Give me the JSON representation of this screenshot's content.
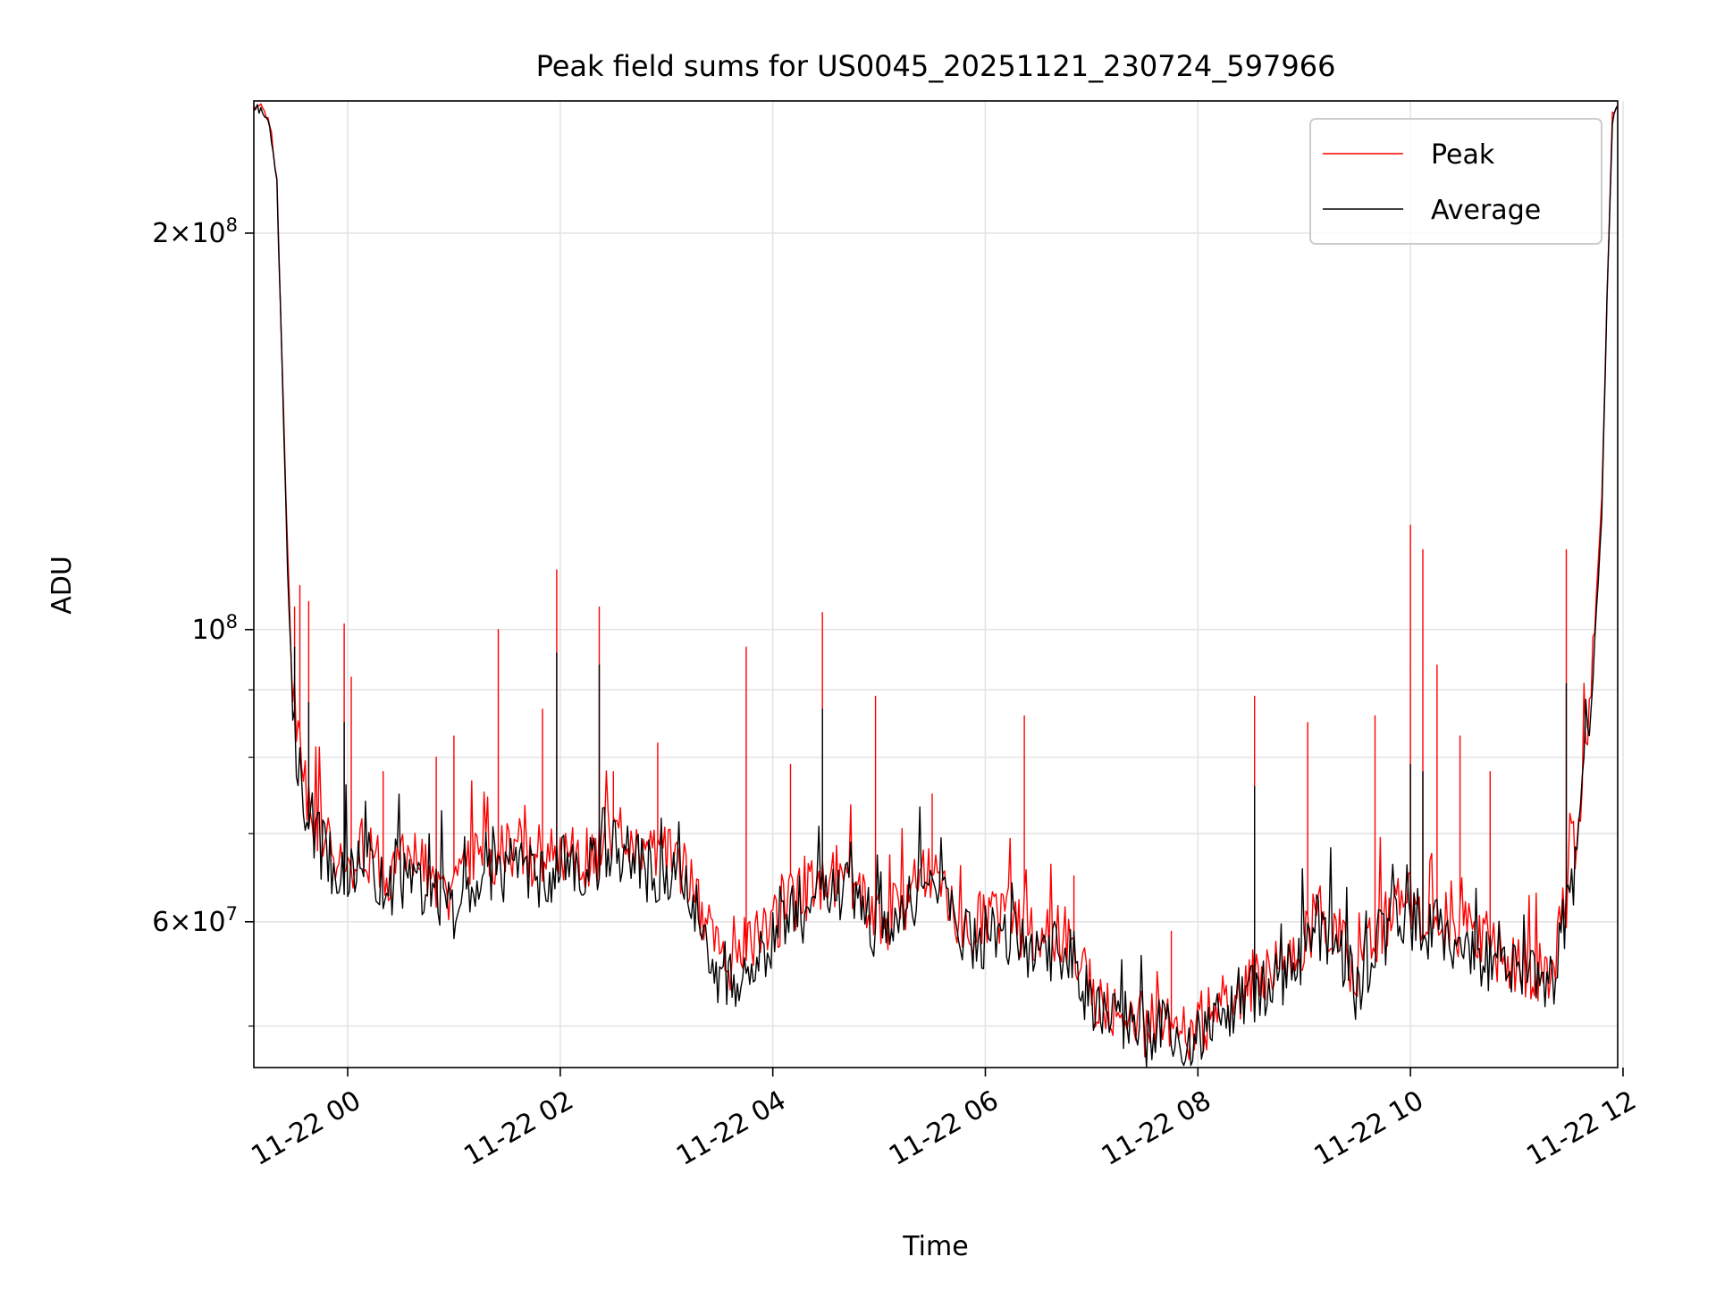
{
  "chart_data": {
    "type": "line",
    "title": "Peak field sums for US0045_20251121_230724_597966",
    "xlabel": "Time",
    "ylabel": "ADU",
    "y_scale": "log",
    "ylim": [
      46500000,
      252000000
    ],
    "xlim": [
      "2025-11-21 23:07",
      "2025-11-22 11:57"
    ],
    "grid": true,
    "legend_position": "top-right",
    "x_ticks": [
      {
        "value": "2025-11-22 00:00",
        "label": "11-22 00"
      },
      {
        "value": "2025-11-22 02:00",
        "label": "11-22 02"
      },
      {
        "value": "2025-11-22 04:00",
        "label": "11-22 04"
      },
      {
        "value": "2025-11-22 06:00",
        "label": "11-22 06"
      },
      {
        "value": "2025-11-22 08:00",
        "label": "11-22 08"
      },
      {
        "value": "2025-11-22 10:00",
        "label": "11-22 10"
      },
      {
        "value": "2025-11-22 12:00",
        "label": "11-22 12"
      }
    ],
    "y_major_ticks": [
      {
        "value": 60000000,
        "mantissa": "6",
        "exponent": "7"
      },
      {
        "value": 100000000,
        "mantissa": "",
        "exponent": "8"
      },
      {
        "value": 200000000,
        "mantissa": "2",
        "exponent": "8"
      }
    ],
    "y_minor_ticks": [
      50000000,
      70000000,
      80000000,
      90000000
    ],
    "series": [
      {
        "name": "Peak",
        "color": "#ff0000",
        "x": [
          "2025-11-21 23:07",
          "2025-11-21 23:12",
          "2025-11-21 23:16",
          "2025-11-21 23:20",
          "2025-11-21 23:23",
          "2025-11-21 23:26",
          "2025-11-21 23:28",
          "2025-11-21 23:30",
          "2025-11-21 23:33",
          "2025-11-21 23:36",
          "2025-11-21 23:40",
          "2025-11-21 23:45",
          "2025-11-21 23:50",
          "2025-11-21 23:55",
          "2025-11-22 00:00",
          "2025-11-22 00:10",
          "2025-11-22 00:20",
          "2025-11-22 00:30",
          "2025-11-22 00:40",
          "2025-11-22 00:50",
          "2025-11-22 01:00",
          "2025-11-22 01:10",
          "2025-11-22 01:20",
          "2025-11-22 01:30",
          "2025-11-22 01:40",
          "2025-11-22 01:50",
          "2025-11-22 02:00",
          "2025-11-22 02:10",
          "2025-11-22 02:20",
          "2025-11-22 02:30",
          "2025-11-22 02:40",
          "2025-11-22 02:50",
          "2025-11-22 03:00",
          "2025-11-22 03:10",
          "2025-11-22 03:20",
          "2025-11-22 03:30",
          "2025-11-22 03:40",
          "2025-11-22 03:50",
          "2025-11-22 04:00",
          "2025-11-22 04:10",
          "2025-11-22 04:20",
          "2025-11-22 04:30",
          "2025-11-22 04:40",
          "2025-11-22 04:50",
          "2025-11-22 05:00",
          "2025-11-22 05:10",
          "2025-11-22 05:20",
          "2025-11-22 05:30",
          "2025-11-22 05:40",
          "2025-11-22 05:50",
          "2025-11-22 06:00",
          "2025-11-22 06:10",
          "2025-11-22 06:20",
          "2025-11-22 06:30",
          "2025-11-22 06:40",
          "2025-11-22 06:50",
          "2025-11-22 07:00",
          "2025-11-22 07:10",
          "2025-11-22 07:20",
          "2025-11-22 07:30",
          "2025-11-22 07:40",
          "2025-11-22 07:50",
          "2025-11-22 08:00",
          "2025-11-22 08:10",
          "2025-11-22 08:20",
          "2025-11-22 08:30",
          "2025-11-22 08:40",
          "2025-11-22 08:50",
          "2025-11-22 09:00",
          "2025-11-22 09:10",
          "2025-11-22 09:20",
          "2025-11-22 09:30",
          "2025-11-22 09:40",
          "2025-11-22 09:50",
          "2025-11-22 10:00",
          "2025-11-22 10:10",
          "2025-11-22 10:20",
          "2025-11-22 10:30",
          "2025-11-22 10:40",
          "2025-11-22 10:50",
          "2025-11-22 11:00",
          "2025-11-22 11:10",
          "2025-11-22 11:20",
          "2025-11-22 11:25",
          "2025-11-22 11:30",
          "2025-11-22 11:35",
          "2025-11-22 11:40",
          "2025-11-22 11:44",
          "2025-11-22 11:48",
          "2025-11-22 11:51",
          "2025-11-22 11:54",
          "2025-11-22 11:57"
        ],
        "y": [
          250000000,
          248000000,
          243000000,
          220000000,
          160000000,
          115000000,
          97000000,
          86000000,
          80000000,
          76000000,
          73000000,
          70000000,
          68000000,
          67000000,
          66000000,
          68000000,
          65000000,
          67000000,
          66000000,
          65000000,
          63000000,
          66000000,
          67000000,
          68000000,
          68000000,
          67000000,
          68000000,
          67000000,
          68000000,
          70000000,
          69000000,
          67000000,
          67000000,
          65000000,
          61000000,
          56000000,
          55000000,
          58000000,
          60000000,
          62000000,
          63000000,
          64000000,
          66000000,
          63000000,
          60000000,
          61000000,
          64000000,
          66000000,
          62000000,
          60000000,
          60000000,
          61000000,
          59000000,
          58000000,
          59000000,
          58000000,
          53000000,
          51000000,
          52000000,
          50000000,
          51000000,
          49500000,
          50000000,
          51500000,
          53000000,
          54000000,
          55000000,
          56000000,
          58000000,
          61000000,
          59000000,
          54000000,
          59000000,
          61000000,
          62000000,
          61000000,
          60000000,
          59000000,
          58000000,
          57000000,
          56000000,
          55000000,
          55000000,
          60000000,
          64000000,
          70000000,
          85000000,
          100000000,
          125000000,
          180000000,
          245000000,
          250000000
        ],
        "spikes": [
          {
            "x": "2025-11-21 23:30",
            "y": 104000000
          },
          {
            "x": "2025-11-21 23:33",
            "y": 108000000
          },
          {
            "x": "2025-11-21 23:38",
            "y": 105000000
          },
          {
            "x": "2025-11-21 23:58",
            "y": 101000000
          },
          {
            "x": "2025-11-22 00:02",
            "y": 92000000
          },
          {
            "x": "2025-11-22 00:20",
            "y": 78000000
          },
          {
            "x": "2025-11-22 00:50",
            "y": 80000000
          },
          {
            "x": "2025-11-22 01:00",
            "y": 83000000
          },
          {
            "x": "2025-11-22 01:25",
            "y": 100000000
          },
          {
            "x": "2025-11-22 01:50",
            "y": 87000000
          },
          {
            "x": "2025-11-22 01:58",
            "y": 111000000
          },
          {
            "x": "2025-11-22 02:22",
            "y": 104000000
          },
          {
            "x": "2025-11-22 02:30",
            "y": 78000000
          },
          {
            "x": "2025-11-22 02:55",
            "y": 82000000
          },
          {
            "x": "2025-11-22 03:45",
            "y": 97000000
          },
          {
            "x": "2025-11-22 04:10",
            "y": 79000000
          },
          {
            "x": "2025-11-22 04:28",
            "y": 103000000
          },
          {
            "x": "2025-11-22 04:58",
            "y": 89000000
          },
          {
            "x": "2025-11-22 05:30",
            "y": 75000000
          },
          {
            "x": "2025-11-22 06:22",
            "y": 86000000
          },
          {
            "x": "2025-11-22 06:50",
            "y": 65000000
          },
          {
            "x": "2025-11-22 07:45",
            "y": 59000000
          },
          {
            "x": "2025-11-22 08:32",
            "y": 89000000
          },
          {
            "x": "2025-11-22 09:02",
            "y": 85000000
          },
          {
            "x": "2025-11-22 09:40",
            "y": 86000000
          },
          {
            "x": "2025-11-22 10:00",
            "y": 120000000
          },
          {
            "x": "2025-11-22 10:07",
            "y": 115000000
          },
          {
            "x": "2025-11-22 10:15",
            "y": 94000000
          },
          {
            "x": "2025-11-22 10:28",
            "y": 83000000
          },
          {
            "x": "2025-11-22 10:45",
            "y": 78000000
          },
          {
            "x": "2025-11-22 11:28",
            "y": 115000000
          }
        ]
      },
      {
        "name": "Average",
        "color": "#000000",
        "x": [
          "2025-11-21 23:07",
          "2025-11-21 23:12",
          "2025-11-21 23:16",
          "2025-11-21 23:20",
          "2025-11-21 23:23",
          "2025-11-21 23:26",
          "2025-11-21 23:28",
          "2025-11-21 23:30",
          "2025-11-21 23:33",
          "2025-11-21 23:36",
          "2025-11-21 23:40",
          "2025-11-21 23:45",
          "2025-11-21 23:50",
          "2025-11-21 23:55",
          "2025-11-22 00:00",
          "2025-11-22 00:10",
          "2025-11-22 00:20",
          "2025-11-22 00:30",
          "2025-11-22 00:40",
          "2025-11-22 00:50",
          "2025-11-22 01:00",
          "2025-11-22 01:10",
          "2025-11-22 01:20",
          "2025-11-22 01:30",
          "2025-11-22 01:40",
          "2025-11-22 01:50",
          "2025-11-22 02:00",
          "2025-11-22 02:10",
          "2025-11-22 02:20",
          "2025-11-22 02:30",
          "2025-11-22 02:40",
          "2025-11-22 02:50",
          "2025-11-22 03:00",
          "2025-11-22 03:10",
          "2025-11-22 03:20",
          "2025-11-22 03:30",
          "2025-11-22 03:40",
          "2025-11-22 03:50",
          "2025-11-22 04:00",
          "2025-11-22 04:10",
          "2025-11-22 04:20",
          "2025-11-22 04:30",
          "2025-11-22 04:40",
          "2025-11-22 04:50",
          "2025-11-22 05:00",
          "2025-11-22 05:10",
          "2025-11-22 05:20",
          "2025-11-22 05:30",
          "2025-11-22 05:40",
          "2025-11-22 05:50",
          "2025-11-22 06:00",
          "2025-11-22 06:10",
          "2025-11-22 06:20",
          "2025-11-22 06:30",
          "2025-11-22 06:40",
          "2025-11-22 06:50",
          "2025-11-22 07:00",
          "2025-11-22 07:10",
          "2025-11-22 07:20",
          "2025-11-22 07:30",
          "2025-11-22 07:40",
          "2025-11-22 07:50",
          "2025-11-22 08:00",
          "2025-11-22 08:10",
          "2025-11-22 08:20",
          "2025-11-22 08:30",
          "2025-11-22 08:40",
          "2025-11-22 08:50",
          "2025-11-22 09:00",
          "2025-11-22 09:10",
          "2025-11-22 09:20",
          "2025-11-22 09:30",
          "2025-11-22 09:40",
          "2025-11-22 09:50",
          "2025-11-22 10:00",
          "2025-11-22 10:10",
          "2025-11-22 10:20",
          "2025-11-22 10:30",
          "2025-11-22 10:40",
          "2025-11-22 10:50",
          "2025-11-22 11:00",
          "2025-11-22 11:10",
          "2025-11-22 11:20",
          "2025-11-22 11:25",
          "2025-11-22 11:30",
          "2025-11-22 11:35",
          "2025-11-22 11:40",
          "2025-11-22 11:44",
          "2025-11-22 11:48",
          "2025-11-22 11:51",
          "2025-11-22 11:54",
          "2025-11-22 11:57"
        ],
        "y": [
          250000000,
          248000000,
          242000000,
          218000000,
          158000000,
          112000000,
          94000000,
          83000000,
          78000000,
          74000000,
          71000000,
          68000000,
          66500000,
          65500000,
          64500000,
          66000000,
          63500000,
          65000000,
          64000000,
          63500000,
          61500000,
          64000000,
          65000000,
          66000000,
          66000000,
          65000000,
          66000000,
          65000000,
          66000000,
          68000000,
          67000000,
          65500000,
          65000000,
          63000000,
          59500000,
          54500000,
          53500000,
          56500000,
          58500000,
          60500000,
          61500000,
          62500000,
          64000000,
          61500000,
          58500000,
          59500000,
          62500000,
          64000000,
          60500000,
          58500000,
          58500000,
          59500000,
          57500000,
          56500000,
          57500000,
          56500000,
          51500000,
          49800000,
          50800000,
          48800000,
          49800000,
          48300000,
          48800000,
          50300000,
          51800000,
          52800000,
          53800000,
          54800000,
          56500000,
          59500000,
          57500000,
          52800000,
          57500000,
          59500000,
          60500000,
          59500000,
          58500000,
          57500000,
          56500000,
          55500000,
          54500000,
          53800000,
          53500000,
          58500000,
          62500000,
          68000000,
          82000000,
          97000000,
          122000000,
          178000000,
          244000000,
          250000000
        ],
        "spikes": [
          {
            "x": "2025-11-21 23:30",
            "y": 97000000
          },
          {
            "x": "2025-11-21 23:38",
            "y": 88000000
          },
          {
            "x": "2025-11-21 23:58",
            "y": 85000000
          },
          {
            "x": "2025-11-22 01:58",
            "y": 96000000
          },
          {
            "x": "2025-11-22 02:22",
            "y": 94000000
          },
          {
            "x": "2025-11-22 04:28",
            "y": 87000000
          },
          {
            "x": "2025-11-22 08:32",
            "y": 76000000
          },
          {
            "x": "2025-11-22 10:00",
            "y": 79000000
          },
          {
            "x": "2025-11-22 10:07",
            "y": 78000000
          },
          {
            "x": "2025-11-22 11:28",
            "y": 91000000
          }
        ]
      }
    ]
  }
}
